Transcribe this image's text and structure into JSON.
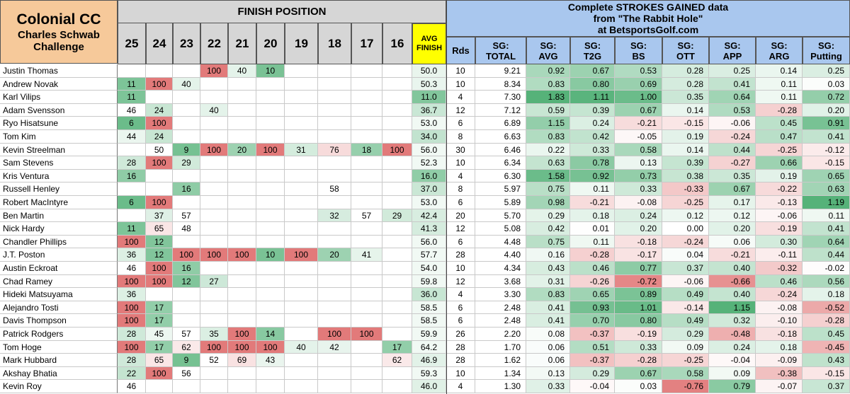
{
  "tournament": {
    "name": "Colonial CC",
    "event": "Charles Schwab Challenge"
  },
  "finish_header": "FINISH POSITION",
  "sg_header": [
    "Complete STROKES GAINED data",
    "from \"The Rabbit Hole\"",
    "at BetsportsGolf.com"
  ],
  "finish_columns": [
    "25",
    "24",
    "23",
    "22",
    "21",
    "20",
    "19",
    "18",
    "17",
    "16"
  ],
  "avg_finish_label": [
    "AVG",
    "FINISH"
  ],
  "rounds_label": "Rds",
  "sg_columns": [
    [
      "SG:",
      "TOTAL"
    ],
    [
      "SG:",
      "AVG"
    ],
    [
      "SG:",
      "T2G"
    ],
    [
      "SG:",
      "BS"
    ],
    [
      "SG:",
      "OTT"
    ],
    [
      "SG:",
      "APP"
    ],
    [
      "SG:",
      "ARG"
    ],
    [
      "SG:",
      "Putting"
    ]
  ],
  "colors": {
    "header_orange": "#f6c99a",
    "header_blue": "#a9c7ee",
    "header_gray": "#d6d6d6",
    "avg_yellow": "#ffff00",
    "good": "#4dae72",
    "bad": "#e27a7a"
  },
  "players": [
    {
      "name": "Justin Thomas",
      "finishes": [
        "",
        "",
        "",
        "100",
        "40",
        "10",
        "",
        "",
        "",
        ""
      ],
      "avg": "50.0",
      "rds": "10",
      "sg": [
        "9.21",
        "0.92",
        "0.67",
        "0.53",
        "0.28",
        "0.25",
        "0.14",
        "0.25"
      ]
    },
    {
      "name": "Andrew Novak",
      "finishes": [
        "11",
        "100",
        "40",
        "",
        "",
        "",
        "",
        "",
        "",
        ""
      ],
      "avg": "50.3",
      "rds": "10",
      "sg": [
        "8.34",
        "0.83",
        "0.80",
        "0.69",
        "0.28",
        "0.41",
        "0.11",
        "0.03"
      ]
    },
    {
      "name": "Karl Vilips",
      "finishes": [
        "11",
        "",
        "",
        "",
        "",
        "",
        "",
        "",
        "",
        ""
      ],
      "avg": "11.0",
      "rds": "4",
      "sg": [
        "7.30",
        "1.83",
        "1.11",
        "1.00",
        "0.35",
        "0.64",
        "0.11",
        "0.72"
      ]
    },
    {
      "name": "Adam Svensson",
      "finishes": [
        "46",
        "24",
        "",
        "40",
        "",
        "",
        "",
        "",
        "",
        ""
      ],
      "avg": "36.7",
      "rds": "12",
      "sg": [
        "7.12",
        "0.59",
        "0.39",
        "0.67",
        "0.14",
        "0.53",
        "-0.28",
        "0.20"
      ]
    },
    {
      "name": "Ryo Hisatsune",
      "finishes": [
        "6",
        "100",
        "",
        "",
        "",
        "",
        "",
        "",
        "",
        ""
      ],
      "avg": "53.0",
      "rds": "6",
      "sg": [
        "6.89",
        "1.15",
        "0.24",
        "-0.21",
        "-0.15",
        "-0.06",
        "0.45",
        "0.91"
      ]
    },
    {
      "name": "Tom Kim",
      "finishes": [
        "44",
        "24",
        "",
        "",
        "",
        "",
        "",
        "",
        "",
        ""
      ],
      "avg": "34.0",
      "rds": "8",
      "sg": [
        "6.63",
        "0.83",
        "0.42",
        "-0.05",
        "0.19",
        "-0.24",
        "0.47",
        "0.41"
      ]
    },
    {
      "name": "Kevin Streelman",
      "finishes": [
        "",
        "50",
        "9",
        "100",
        "20",
        "100",
        "31",
        "76",
        "18",
        "100"
      ],
      "avg": "56.0",
      "rds": "30",
      "sg": [
        "6.46",
        "0.22",
        "0.33",
        "0.58",
        "0.14",
        "0.44",
        "-0.25",
        "-0.12"
      ]
    },
    {
      "name": "Sam Stevens",
      "finishes": [
        "28",
        "100",
        "29",
        "",
        "",
        "",
        "",
        "",
        "",
        ""
      ],
      "avg": "52.3",
      "rds": "10",
      "sg": [
        "6.34",
        "0.63",
        "0.78",
        "0.13",
        "0.39",
        "-0.27",
        "0.66",
        "-0.15"
      ]
    },
    {
      "name": "Kris Ventura",
      "finishes": [
        "16",
        "",
        "",
        "",
        "",
        "",
        "",
        "",
        "",
        ""
      ],
      "avg": "16.0",
      "rds": "4",
      "sg": [
        "6.30",
        "1.58",
        "0.92",
        "0.73",
        "0.38",
        "0.35",
        "0.19",
        "0.65"
      ]
    },
    {
      "name": "Russell Henley",
      "finishes": [
        "",
        "",
        "16",
        "",
        "",
        "",
        "",
        "58",
        "",
        ""
      ],
      "avg": "37.0",
      "rds": "8",
      "sg": [
        "5.97",
        "0.75",
        "0.11",
        "0.33",
        "-0.33",
        "0.67",
        "-0.22",
        "0.63"
      ]
    },
    {
      "name": "Robert MacIntyre",
      "finishes": [
        "6",
        "100",
        "",
        "",
        "",
        "",
        "",
        "",
        "",
        ""
      ],
      "avg": "53.0",
      "rds": "6",
      "sg": [
        "5.89",
        "0.98",
        "-0.21",
        "-0.08",
        "-0.25",
        "0.17",
        "-0.13",
        "1.19"
      ]
    },
    {
      "name": "Ben Martin",
      "finishes": [
        "",
        "37",
        "57",
        "",
        "",
        "",
        "",
        "32",
        "57",
        "29"
      ],
      "avg": "42.4",
      "rds": "20",
      "sg": [
        "5.70",
        "0.29",
        "0.18",
        "0.24",
        "0.12",
        "0.12",
        "-0.06",
        "0.11"
      ]
    },
    {
      "name": "Nick Hardy",
      "finishes": [
        "11",
        "65",
        "48",
        "",
        "",
        "",
        "",
        "",
        "",
        ""
      ],
      "avg": "41.3",
      "rds": "12",
      "sg": [
        "5.08",
        "0.42",
        "0.01",
        "0.20",
        "0.00",
        "0.20",
        "-0.19",
        "0.41"
      ]
    },
    {
      "name": "Chandler Phillips",
      "finishes": [
        "100",
        "12",
        "",
        "",
        "",
        "",
        "",
        "",
        "",
        ""
      ],
      "avg": "56.0",
      "rds": "6",
      "sg": [
        "4.48",
        "0.75",
        "0.11",
        "-0.18",
        "-0.24",
        "0.06",
        "0.30",
        "0.64"
      ]
    },
    {
      "name": "J.T. Poston",
      "finishes": [
        "36",
        "12",
        "100",
        "100",
        "100",
        "10",
        "100",
        "20",
        "41",
        ""
      ],
      "avg": "57.7",
      "rds": "28",
      "sg": [
        "4.40",
        "0.16",
        "-0.28",
        "-0.17",
        "0.04",
        "-0.21",
        "-0.11",
        "0.44"
      ]
    },
    {
      "name": "Austin Eckroat",
      "finishes": [
        "46",
        "100",
        "16",
        "",
        "",
        "",
        "",
        "",
        "",
        ""
      ],
      "avg": "54.0",
      "rds": "10",
      "sg": [
        "4.34",
        "0.43",
        "0.46",
        "0.77",
        "0.37",
        "0.40",
        "-0.32",
        "-0.02"
      ]
    },
    {
      "name": "Chad Ramey",
      "finishes": [
        "100",
        "100",
        "12",
        "27",
        "",
        "",
        "",
        "",
        "",
        ""
      ],
      "avg": "59.8",
      "rds": "12",
      "sg": [
        "3.68",
        "0.31",
        "-0.26",
        "-0.72",
        "-0.06",
        "-0.66",
        "0.46",
        "0.56"
      ]
    },
    {
      "name": "Hideki Matsuyama",
      "finishes": [
        "36",
        "",
        "",
        "",
        "",
        "",
        "",
        "",
        "",
        ""
      ],
      "avg": "36.0",
      "rds": "4",
      "sg": [
        "3.30",
        "0.83",
        "0.65",
        "0.89",
        "0.49",
        "0.40",
        "-0.24",
        "0.18"
      ]
    },
    {
      "name": "Alejandro Tosti",
      "finishes": [
        "100",
        "17",
        "",
        "",
        "",
        "",
        "",
        "",
        "",
        ""
      ],
      "avg": "58.5",
      "rds": "6",
      "sg": [
        "2.48",
        "0.41",
        "0.93",
        "1.01",
        "-0.14",
        "1.15",
        "-0.08",
        "-0.52"
      ]
    },
    {
      "name": "Davis Thompson",
      "finishes": [
        "100",
        "17",
        "",
        "",
        "",
        "",
        "",
        "",
        "",
        ""
      ],
      "avg": "58.5",
      "rds": "6",
      "sg": [
        "2.48",
        "0.41",
        "0.70",
        "0.80",
        "0.49",
        "0.32",
        "-0.10",
        "-0.28"
      ]
    },
    {
      "name": "Patrick Rodgers",
      "finishes": [
        "28",
        "45",
        "57",
        "35",
        "100",
        "14",
        "",
        "100",
        "100",
        ""
      ],
      "avg": "59.9",
      "rds": "26",
      "sg": [
        "2.20",
        "0.08",
        "-0.37",
        "-0.19",
        "0.29",
        "-0.48",
        "-0.18",
        "0.45"
      ]
    },
    {
      "name": "Tom Hoge",
      "finishes": [
        "100",
        "17",
        "62",
        "100",
        "100",
        "100",
        "40",
        "42",
        "",
        "17"
      ],
      "avg": "64.2",
      "rds": "28",
      "sg": [
        "1.70",
        "0.06",
        "0.51",
        "0.33",
        "0.09",
        "0.24",
        "0.18",
        "-0.45"
      ]
    },
    {
      "name": "Mark Hubbard",
      "finishes": [
        "28",
        "65",
        "9",
        "52",
        "69",
        "43",
        "",
        "",
        "",
        "62"
      ],
      "avg": "46.9",
      "rds": "28",
      "sg": [
        "1.62",
        "0.06",
        "-0.37",
        "-0.28",
        "-0.25",
        "-0.04",
        "-0.09",
        "0.43"
      ]
    },
    {
      "name": "Akshay Bhatia",
      "finishes": [
        "22",
        "100",
        "56",
        "",
        "",
        "",
        "",
        "",
        "",
        ""
      ],
      "avg": "59.3",
      "rds": "10",
      "sg": [
        "1.34",
        "0.13",
        "0.29",
        "0.67",
        "0.58",
        "0.09",
        "-0.38",
        "-0.15"
      ]
    },
    {
      "name": "Kevin Roy",
      "finishes": [
        "46",
        "",
        "",
        "",
        "",
        "",
        "",
        "",
        "",
        ""
      ],
      "avg": "46.0",
      "rds": "4",
      "sg": [
        "1.30",
        "0.33",
        "-0.04",
        "0.03",
        "-0.76",
        "0.79",
        "-0.07",
        "0.37"
      ]
    }
  ]
}
